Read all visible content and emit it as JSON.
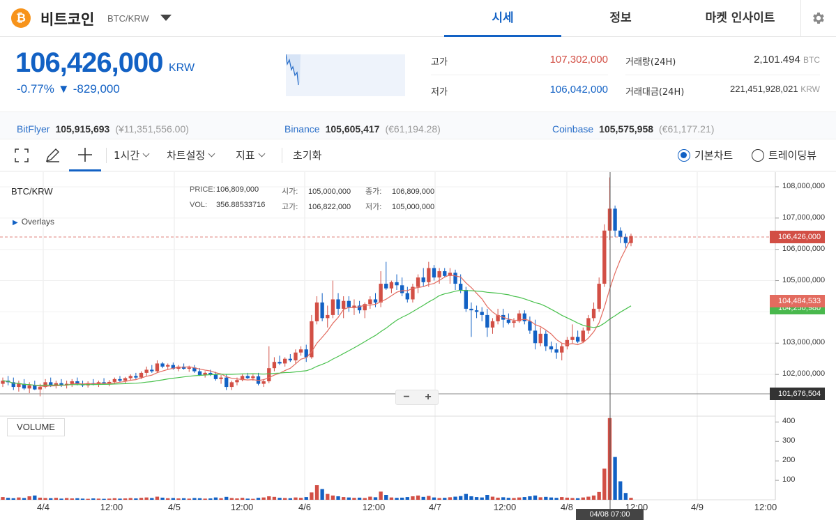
{
  "header": {
    "coin_icon": "₿",
    "coin_name": "비트코인",
    "pair": "BTC/KRW",
    "tabs": [
      {
        "label": "시세",
        "active": true
      },
      {
        "label": "정보",
        "active": false
      },
      {
        "label": "마켓 인사이트",
        "active": false
      }
    ],
    "settings_icon": "gear-icon"
  },
  "ticker": {
    "price": "106,426,000",
    "unit": "KRW",
    "change_rate": "-0.77%",
    "change_arrow": "▼",
    "change_amount": "-829,000",
    "high_label": "고가",
    "high_value": "107,302,000",
    "low_label": "저가",
    "low_value": "106,042,000",
    "volume_label": "거래량(24H)",
    "volume_value": "2,101.494",
    "volume_unit": "BTC",
    "amount_label": "거래대금(24H)",
    "amount_value": "221,451,928,021",
    "amount_unit": "KRW"
  },
  "exchanges": [
    {
      "name": "BitFlyer",
      "price": "105,915,693",
      "fx": "(¥11,351,556.00)"
    },
    {
      "name": "Binance",
      "price": "105,605,417",
      "fx": "(€61,194.28)"
    },
    {
      "name": "Coinbase",
      "price": "105,575,958",
      "fx": "(€61,177.21)"
    }
  ],
  "toolbar": {
    "interval": "1시간",
    "chart_settings": "차트설정",
    "indicators": "지표",
    "reset": "초기화",
    "basic_chart": "기본차트",
    "tradingview": "트레이딩뷰"
  },
  "chart_legend": {
    "symbol": "BTC/KRW",
    "overlays": "Overlays",
    "price_label": "PRICE:",
    "price_value": "106,809,000",
    "vol_label": "VOL:",
    "vol_value": "356.88533716",
    "open_label": "시가:",
    "open_value": "105,000,000",
    "high_label": "고가:",
    "high_value": "106,822,000",
    "close_label": "종가:",
    "close_value": "106,809,000",
    "low_label": "저가:",
    "low_value": "105,000,000",
    "volume_button": "VOLUME",
    "zoom_out": "−",
    "zoom_in": "+",
    "current_price_tag": "106,426,000",
    "ma1_tag": "104,484,533",
    "ma2_tag": "104,250,980",
    "crosshair_tag": "101,676,504",
    "time_badge": "04/08 07:00"
  },
  "colors": {
    "accent": "#1261c4",
    "up": "#d24f45",
    "down": "#1261c4",
    "ma_short": "#e36b5f",
    "ma_long": "#49c14d"
  },
  "chart_data": {
    "type": "candlestick",
    "y_tick_labels": [
      "108,000,000",
      "107,000,000",
      "106,000,000",
      "105,000,000",
      "104,000,000",
      "103,000,000",
      "102,000,000"
    ],
    "y_ticks": [
      108000000,
      107000000,
      106000000,
      105000000,
      104000000,
      103000000,
      102000000
    ],
    "ylim": [
      101000000,
      108200000
    ],
    "vol_tick_labels": [
      "400",
      "300",
      "200",
      "100"
    ],
    "vol_ticks": [
      400,
      300,
      200,
      100
    ],
    "vol_max": 430,
    "x_tick_labels": [
      "4/4",
      "12:00",
      "4/5",
      "12:00",
      "4/6",
      "12:00",
      "4/7",
      "12:00",
      "4/8",
      "12:00",
      "4/9",
      "12:00"
    ],
    "candles": [
      [
        101700000,
        101900000,
        101600000,
        101800000,
        14
      ],
      [
        101800000,
        101950000,
        101650000,
        101750000,
        10
      ],
      [
        101750000,
        101900000,
        101500000,
        101600000,
        8
      ],
      [
        101600000,
        101800000,
        101450000,
        101700000,
        12
      ],
      [
        101700000,
        101850000,
        101500000,
        101550000,
        9
      ],
      [
        101550000,
        101750000,
        101400000,
        101650000,
        18
      ],
      [
        101650000,
        101800000,
        101500000,
        101520000,
        22
      ],
      [
        101520000,
        101700000,
        101300000,
        101600000,
        11
      ],
      [
        101600000,
        101850000,
        101550000,
        101750000,
        9
      ],
      [
        101750000,
        101900000,
        101600000,
        101650000,
        8
      ],
      [
        101650000,
        101800000,
        101550000,
        101720000,
        10
      ],
      [
        101720000,
        101850000,
        101600000,
        101650000,
        6
      ],
      [
        101650000,
        101800000,
        101550000,
        101700000,
        9
      ],
      [
        101700000,
        101850000,
        101600000,
        101780000,
        7
      ],
      [
        101780000,
        101900000,
        101650000,
        101700000,
        8
      ],
      [
        101700000,
        101800000,
        101600000,
        101650000,
        6
      ],
      [
        101650000,
        101780000,
        101580000,
        101720000,
        5
      ],
      [
        101720000,
        101850000,
        101650000,
        101680000,
        7
      ],
      [
        101680000,
        101800000,
        101600000,
        101750000,
        6
      ],
      [
        101750000,
        101880000,
        101680000,
        101700000,
        5
      ],
      [
        101700000,
        101820000,
        101620000,
        101760000,
        6
      ],
      [
        101760000,
        101900000,
        101700000,
        101850000,
        8
      ],
      [
        101850000,
        101950000,
        101750000,
        101800000,
        6
      ],
      [
        101800000,
        101920000,
        101720000,
        101880000,
        7
      ],
      [
        101880000,
        102000000,
        101800000,
        101950000,
        9
      ],
      [
        101950000,
        102050000,
        101850000,
        101900000,
        7
      ],
      [
        101900000,
        102100000,
        101850000,
        102050000,
        10
      ],
      [
        102050000,
        102250000,
        101950000,
        102150000,
        12
      ],
      [
        102150000,
        102300000,
        102050000,
        102100000,
        9
      ],
      [
        102100000,
        102450000,
        102050000,
        102350000,
        16
      ],
      [
        102350000,
        102400000,
        102200000,
        102250000,
        11
      ],
      [
        102250000,
        102350000,
        102150000,
        102300000,
        8
      ],
      [
        102300000,
        102380000,
        102150000,
        102180000,
        9
      ],
      [
        102180000,
        102300000,
        102100000,
        102250000,
        7
      ],
      [
        102250000,
        102350000,
        102150000,
        102180000,
        8
      ],
      [
        102180000,
        102280000,
        102080000,
        102220000,
        6
      ],
      [
        102220000,
        102300000,
        102050000,
        102100000,
        9
      ],
      [
        102100000,
        102200000,
        101950000,
        101980000,
        8
      ],
      [
        101980000,
        102100000,
        101900000,
        102050000,
        6
      ],
      [
        102050000,
        102150000,
        101950000,
        102000000,
        7
      ],
      [
        102000000,
        102080000,
        101800000,
        101850000,
        12
      ],
      [
        101850000,
        101980000,
        101700000,
        101900000,
        8
      ],
      [
        101900000,
        102000000,
        101500000,
        101600000,
        15
      ],
      [
        101600000,
        101800000,
        101500000,
        101750000,
        9
      ],
      [
        101750000,
        101900000,
        101650000,
        101820000,
        7
      ],
      [
        101820000,
        102000000,
        101780000,
        101950000,
        10
      ],
      [
        101950000,
        102050000,
        101850000,
        101880000,
        6
      ],
      [
        101880000,
        102000000,
        101800000,
        101940000,
        5
      ],
      [
        101940000,
        102050000,
        101650000,
        101700000,
        10
      ],
      [
        101700000,
        101850000,
        101600000,
        101780000,
        12
      ],
      [
        101780000,
        102900000,
        101720000,
        102200000,
        18
      ],
      [
        102200000,
        102550000,
        102100000,
        102400000,
        15
      ],
      [
        102400000,
        102600000,
        102300000,
        102350000,
        10
      ],
      [
        102350000,
        102550000,
        102250000,
        102500000,
        9
      ],
      [
        102500000,
        102650000,
        102400000,
        102450000,
        8
      ],
      [
        102450000,
        102800000,
        102350000,
        102700000,
        12
      ],
      [
        102700000,
        102900000,
        102600000,
        102800000,
        10
      ],
      [
        102800000,
        102950000,
        102400000,
        102550000,
        14
      ],
      [
        102550000,
        103900000,
        102500000,
        103700000,
        38
      ],
      [
        103700000,
        104500000,
        103600000,
        104300000,
        75
      ],
      [
        104300000,
        104600000,
        103700000,
        103800000,
        55
      ],
      [
        103800000,
        104200000,
        103500000,
        103900000,
        30
      ],
      [
        103900000,
        105000000,
        103800000,
        104400000,
        22
      ],
      [
        104400000,
        104600000,
        103900000,
        104100000,
        18
      ],
      [
        104100000,
        104500000,
        103800000,
        104350000,
        14
      ],
      [
        104350000,
        104500000,
        104000000,
        104150000,
        12
      ],
      [
        104150000,
        104400000,
        103900000,
        104200000,
        10
      ],
      [
        104200000,
        104350000,
        103950000,
        104050000,
        11
      ],
      [
        104050000,
        104300000,
        103800000,
        104250000,
        9
      ],
      [
        104250000,
        104500000,
        104100000,
        104400000,
        16
      ],
      [
        104400000,
        104600000,
        104150000,
        104300000,
        13
      ],
      [
        104300000,
        105300000,
        104150000,
        104900000,
        42
      ],
      [
        104900000,
        105600000,
        104700000,
        104750000,
        25
      ],
      [
        104750000,
        105000000,
        104600000,
        104950000,
        12
      ],
      [
        104950000,
        105200000,
        104700000,
        104850000,
        10
      ],
      [
        104850000,
        105100000,
        104500000,
        104600000,
        11
      ],
      [
        104600000,
        104800000,
        104300000,
        104400000,
        14
      ],
      [
        104400000,
        104900000,
        104300000,
        104800000,
        18
      ],
      [
        104800000,
        105200000,
        104600000,
        105100000,
        22
      ],
      [
        105100000,
        105400000,
        104800000,
        104950000,
        15
      ],
      [
        104950000,
        105600000,
        104800000,
        105400000,
        20
      ],
      [
        105400000,
        105500000,
        105000000,
        105100000,
        12
      ],
      [
        105100000,
        105400000,
        104900000,
        105300000,
        9
      ],
      [
        105300000,
        105400000,
        105100000,
        105150000,
        10
      ],
      [
        105150000,
        105400000,
        104900000,
        105250000,
        13
      ],
      [
        105250000,
        105350000,
        104700000,
        104900000,
        16
      ],
      [
        104900000,
        105200000,
        104600000,
        104700000,
        19
      ],
      [
        104700000,
        104800000,
        104000000,
        104100000,
        30
      ],
      [
        104100000,
        104300000,
        103200000,
        104050000,
        18
      ],
      [
        104050000,
        104200000,
        103800000,
        104000000,
        14
      ],
      [
        104000000,
        104150000,
        103700000,
        103900000,
        12
      ],
      [
        103900000,
        104100000,
        103200000,
        103500000,
        25
      ],
      [
        103500000,
        103800000,
        103300000,
        103700000,
        16
      ],
      [
        103700000,
        104100000,
        103600000,
        103900000,
        11
      ],
      [
        103900000,
        104100000,
        103500000,
        103750000,
        13
      ],
      [
        103750000,
        103950000,
        103600000,
        103650000,
        10
      ],
      [
        103650000,
        103800000,
        103500000,
        103700000,
        9
      ],
      [
        103700000,
        104050000,
        103650000,
        103950000,
        12
      ],
      [
        103950000,
        104050000,
        103600000,
        103700000,
        14
      ],
      [
        103700000,
        103850000,
        103300000,
        103400000,
        18
      ],
      [
        103400000,
        103750000,
        102800000,
        103000000,
        22
      ],
      [
        103000000,
        103500000,
        102900000,
        103300000,
        13
      ],
      [
        103300000,
        103400000,
        102750000,
        102900000,
        15
      ],
      [
        102900000,
        103050000,
        102700000,
        102800000,
        12
      ],
      [
        102800000,
        103000000,
        102500000,
        102700000,
        10
      ],
      [
        102700000,
        103000000,
        102450000,
        102900000,
        14
      ],
      [
        102900000,
        103200000,
        102800000,
        103100000,
        11
      ],
      [
        103100000,
        103600000,
        103000000,
        103200000,
        9
      ],
      [
        103200000,
        103400000,
        103000000,
        103050000,
        8
      ],
      [
        103050000,
        103500000,
        103000000,
        103400000,
        12
      ],
      [
        103400000,
        103900000,
        103300000,
        103800000,
        16
      ],
      [
        103800000,
        104300000,
        103700000,
        104100000,
        22
      ],
      [
        104100000,
        105100000,
        104000000,
        104900000,
        40
      ],
      [
        104900000,
        106800000,
        104800000,
        106600000,
        160
      ],
      [
        106600000,
        108300000,
        106300000,
        107300000,
        420
      ],
      [
        107300000,
        107400000,
        106400000,
        106600000,
        220
      ],
      [
        106600000,
        106700000,
        106200000,
        106400000,
        95
      ],
      [
        106400000,
        106500000,
        106050000,
        106200000,
        35
      ],
      [
        106200000,
        106500000,
        106100000,
        106426000,
        10
      ]
    ]
  }
}
